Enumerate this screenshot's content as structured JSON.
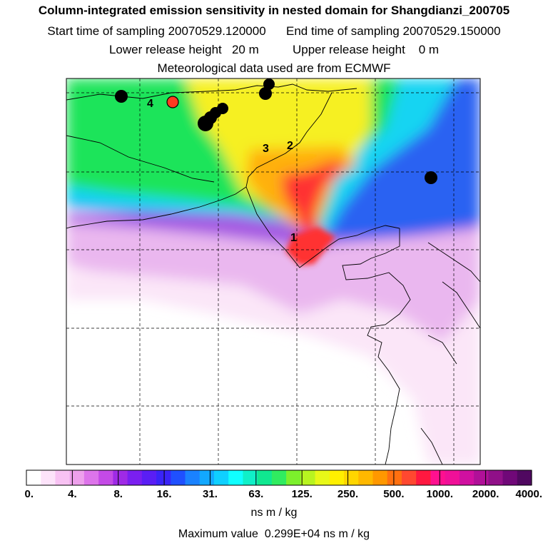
{
  "header": {
    "title": "Column-integrated emission sensitivity in nested domain for Shangdianzi_200705",
    "start_label": "Start time of sampling",
    "start_value": "20070529.120000",
    "end_label": "End time of sampling",
    "end_value": "20070529.150000",
    "lower_label": "Lower release height",
    "lower_value": "20 m",
    "upper_label": "Upper release height",
    "upper_value": "0 m",
    "met_line": "Meteorological data used are from ECMWF"
  },
  "colorbar": {
    "ticks": [
      "0.",
      "4.",
      "8.",
      "16.",
      "31.",
      "63.",
      "125.",
      "250.",
      "500.",
      "1000.",
      "2000.",
      "4000."
    ],
    "unit": "ns m / kg",
    "colors": [
      "#ffffff",
      "#fde3fa",
      "#f8c2f3",
      "#eea0ec",
      "#dd74ea",
      "#c44ae6",
      "#9f2ae6",
      "#7a1ff0",
      "#5a1ef5",
      "#3a24f8",
      "#1f50ff",
      "#1a82ff",
      "#12a8ff",
      "#0fd0ff",
      "#10ffff",
      "#10f0c8",
      "#10e890",
      "#30ec60",
      "#7cf02c",
      "#b8f420",
      "#e8f818",
      "#fff000",
      "#ffd600",
      "#ffb800",
      "#ff9800",
      "#ff7010",
      "#ff4830",
      "#ff1840",
      "#ff1090",
      "#f01098",
      "#d010a0",
      "#b01098",
      "#901088",
      "#700878",
      "#500860"
    ]
  },
  "footer": {
    "max_label": "Maximum value",
    "max_value": "0.299E+04",
    "max_unit": "ns m / kg"
  },
  "map": {
    "field_colors": {
      "lowest": "#fbe6f8",
      "low": "#eab7ef",
      "mid_low": "#d48ee8",
      "purple": "#a55ae2",
      "blue": "#2b62f2",
      "cyan": "#18d4f2",
      "green": "#1ee45a",
      "yellow": "#f6f020",
      "orange": "#ffb010",
      "red": "#ff3030"
    },
    "source_labels": [
      "1",
      "2",
      "3",
      "4"
    ],
    "receptor_color": "#ff3a20"
  }
}
